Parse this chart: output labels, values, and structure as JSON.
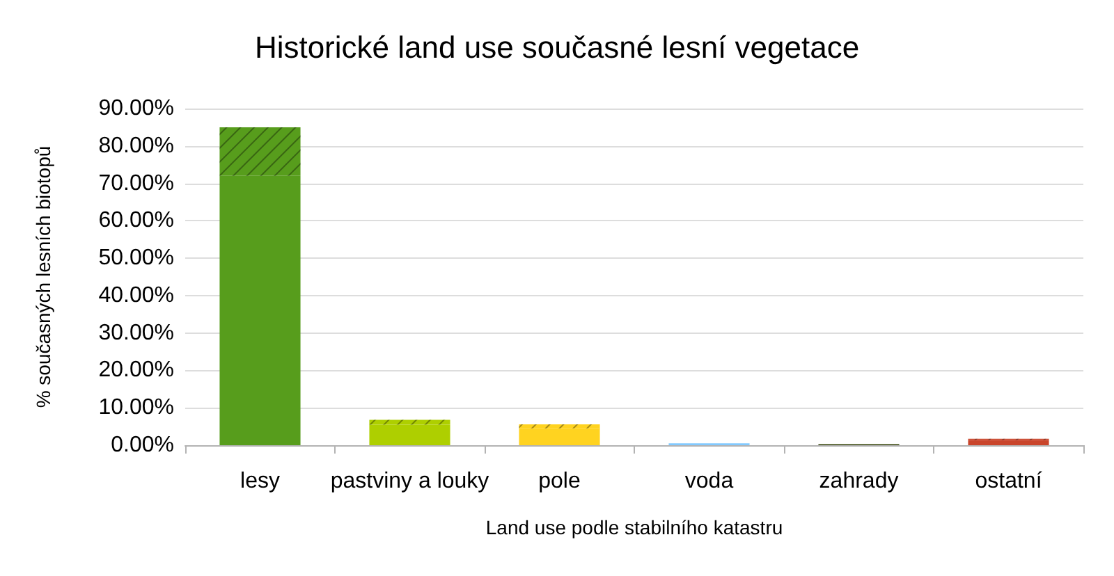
{
  "chart_data": {
    "type": "bar",
    "title": "Historické land use současné lesní vegetace",
    "xlabel": "Land use podle stabilního katastru",
    "ylabel": "% současných lesních biotopů",
    "categories": [
      "lesy",
      "pastviny a louky",
      "pole",
      "voda",
      "zahrady",
      "ostatní"
    ],
    "stacked": true,
    "series": [
      {
        "colors": [
          "#579d1c",
          "#aecf00",
          "#ffd320",
          "#83caff",
          "#314004",
          "#c9452b"
        ],
        "values": [
          72,
          5.5,
          4.5,
          0.5,
          0.3,
          1.4
        ]
      },
      {
        "colors": [
          "#579d1c",
          "#aecf00",
          "#ffd320",
          "#83caff",
          "#314004",
          "#c9452b"
        ],
        "values": [
          13,
          1.3,
          1.1,
          null,
          0,
          0.3
        ]
      }
    ],
    "ylim": [
      0,
      90
    ],
    "yticks": [
      {
        "value": 0,
        "label": "0.00%"
      },
      {
        "value": 10,
        "label": "10.00%"
      },
      {
        "value": 20,
        "label": "20.00%"
      },
      {
        "value": 30,
        "label": "30.00%"
      },
      {
        "value": 40,
        "label": "40.00%"
      },
      {
        "value": 50,
        "label": "50.00%"
      },
      {
        "value": 60,
        "label": "60.00%"
      },
      {
        "value": 70,
        "label": "70.00%"
      },
      {
        "value": 80,
        "label": "80.00%"
      },
      {
        "value": 90,
        "label": "90.00%"
      }
    ],
    "grid": "y"
  }
}
